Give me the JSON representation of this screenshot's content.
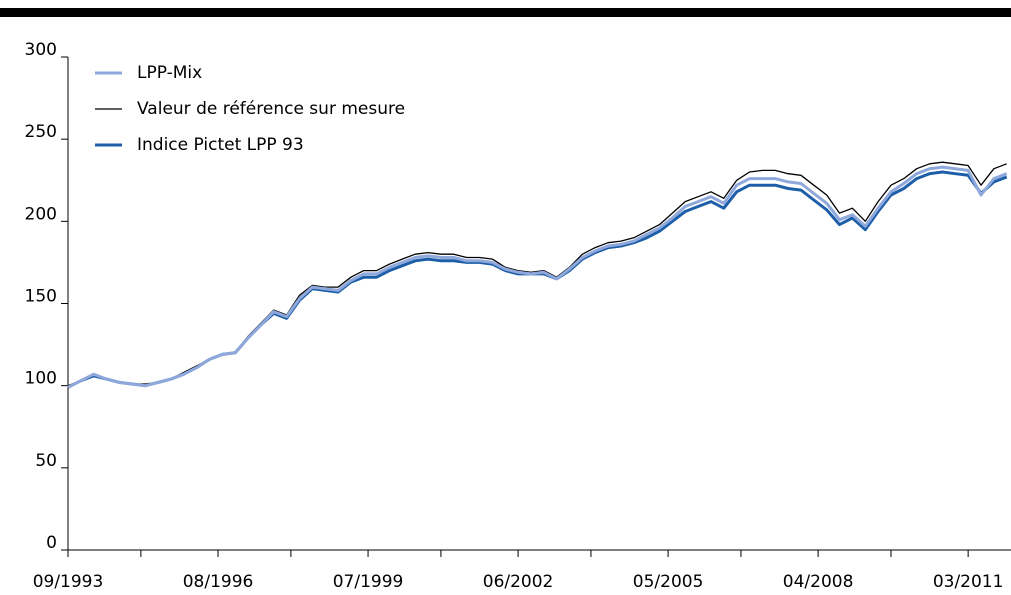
{
  "chart_data": {
    "type": "line",
    "x": [
      "09/1993",
      "12/1993",
      "03/1994",
      "06/1994",
      "09/1994",
      "12/1994",
      "03/1995",
      "06/1995",
      "09/1995",
      "12/1995",
      "03/1996",
      "06/1996",
      "09/1996",
      "12/1996",
      "03/1997",
      "06/1997",
      "09/1997",
      "12/1997",
      "03/1998",
      "06/1998",
      "09/1998",
      "12/1998",
      "03/1999",
      "06/1999",
      "09/1999",
      "12/1999",
      "03/2000",
      "06/2000",
      "09/2000",
      "12/2000",
      "03/2001",
      "06/2001",
      "09/2001",
      "12/2001",
      "03/2002",
      "06/2002",
      "09/2002",
      "12/2002",
      "03/2003",
      "06/2003",
      "09/2003",
      "12/2003",
      "03/2004",
      "06/2004",
      "09/2004",
      "12/2004",
      "03/2005",
      "06/2005",
      "09/2005",
      "12/2005",
      "03/2006",
      "06/2006",
      "09/2006",
      "12/2006",
      "03/2007",
      "06/2007",
      "09/2007",
      "12/2007",
      "03/2008",
      "06/2008",
      "09/2008",
      "12/2008",
      "03/2009",
      "06/2009",
      "09/2009",
      "12/2009",
      "03/2010",
      "06/2010",
      "09/2010",
      "12/2010",
      "03/2011",
      "06/2011",
      "09/2011",
      "12/2011"
    ],
    "series": [
      {
        "name": "LPP-Mix",
        "color": "#8fa8db",
        "width": 3,
        "values": [
          99,
          103,
          107,
          104,
          102,
          101,
          100,
          102,
          104,
          107,
          111,
          116,
          119,
          120,
          129,
          137,
          145,
          142,
          153,
          160,
          159,
          158,
          164,
          168,
          168,
          172,
          175,
          178,
          179,
          178,
          178,
          176,
          176,
          175,
          171,
          169,
          168,
          169,
          165,
          171,
          178,
          182,
          185,
          186,
          188,
          192,
          196,
          202,
          209,
          212,
          215,
          211,
          222,
          226,
          226,
          226,
          224,
          223,
          217,
          211,
          201,
          204,
          197,
          208,
          218,
          223,
          229,
          232,
          233,
          232,
          231,
          216,
          226,
          229
        ]
      },
      {
        "name": "Valeur de référence sur mesure",
        "color": "#000000",
        "width": 1.3,
        "values": [
          100,
          103,
          107,
          104,
          102,
          101,
          101,
          102,
          104,
          108,
          112,
          116,
          119,
          120,
          130,
          138,
          146,
          143,
          155,
          161,
          160,
          160,
          166,
          170,
          170,
          174,
          177,
          180,
          181,
          180,
          180,
          178,
          178,
          177,
          172,
          170,
          169,
          170,
          166,
          172,
          180,
          184,
          187,
          188,
          190,
          194,
          198,
          205,
          212,
          215,
          218,
          214,
          225,
          230,
          231,
          231,
          229,
          228,
          222,
          216,
          205,
          208,
          200,
          212,
          222,
          226,
          232,
          235,
          236,
          235,
          234,
          222,
          232,
          235
        ]
      },
      {
        "name": "Indice Pictet LPP 93",
        "color": "#1d5ea8",
        "width": 3,
        "values": [
          99,
          103,
          106,
          104,
          102,
          101,
          100,
          102,
          104,
          107,
          111,
          116,
          119,
          120,
          129,
          137,
          144,
          141,
          152,
          159,
          158,
          157,
          163,
          166,
          166,
          170,
          173,
          176,
          177,
          176,
          176,
          175,
          175,
          174,
          170,
          168,
          168,
          168,
          165,
          170,
          177,
          181,
          184,
          185,
          187,
          190,
          194,
          200,
          206,
          209,
          212,
          208,
          218,
          222,
          222,
          222,
          220,
          219,
          213,
          207,
          198,
          202,
          195,
          206,
          216,
          220,
          226,
          229,
          230,
          229,
          228,
          217,
          224,
          227
        ]
      }
    ],
    "xlim": [
      "09/1993",
      "01/2012"
    ],
    "xticks": [
      "09/1993",
      "08/1996",
      "07/1999",
      "06/2002",
      "05/2005",
      "04/2008",
      "03/2011"
    ],
    "xminorticks": [
      "02/1995",
      "01/1998",
      "12/2000",
      "11/2003",
      "10/2006",
      "09/2009"
    ],
    "ylim": [
      0,
      300
    ],
    "yticks": [
      0,
      50,
      100,
      150,
      200,
      250,
      300
    ],
    "grid": false,
    "legend": "upper left"
  }
}
